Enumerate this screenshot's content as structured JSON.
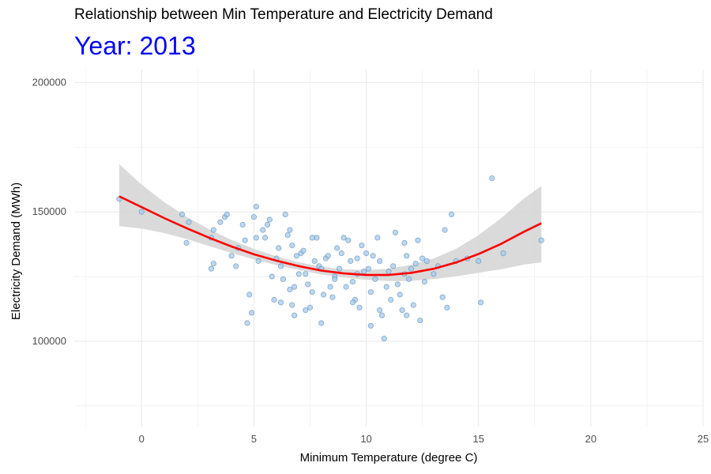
{
  "chart_data": {
    "type": "scatter",
    "title": "Relationship between Min Temperature and Electricity Demand",
    "subtitle": "Year: 2013",
    "xlabel": "Minimum Temperature (degree C)",
    "ylabel": "Electricity Demand (MWh)",
    "xlim": [
      -3,
      25
    ],
    "ylim": [
      67000,
      205000
    ],
    "x_ticks": [
      0,
      5,
      10,
      15,
      20,
      25
    ],
    "y_ticks": [
      100000,
      150000,
      200000
    ],
    "grid": true,
    "legend": "none",
    "points": [
      [
        -1,
        155000
      ],
      [
        0,
        150000
      ],
      [
        1.8,
        149000
      ],
      [
        2,
        138000
      ],
      [
        2.1,
        146000
      ],
      [
        3.1,
        140000
      ],
      [
        3.2,
        143000
      ],
      [
        3.5,
        146000
      ],
      [
        3.7,
        148000
      ],
      [
        3.8,
        149000
      ],
      [
        3.1,
        128000
      ],
      [
        3.2,
        130000
      ],
      [
        4.0,
        133000
      ],
      [
        4.2,
        129000
      ],
      [
        4.3,
        136000
      ],
      [
        4.5,
        145000
      ],
      [
        4.6,
        139000
      ],
      [
        4.7,
        107000
      ],
      [
        4.9,
        111000
      ],
      [
        4.8,
        118000
      ],
      [
        5.0,
        148000
      ],
      [
        5.1,
        152000
      ],
      [
        5.2,
        131000
      ],
      [
        5.4,
        143000
      ],
      [
        5.5,
        140000
      ],
      [
        5.6,
        145000
      ],
      [
        5.7,
        147000
      ],
      [
        5.8,
        125000
      ],
      [
        5.9,
        116000
      ],
      [
        6.0,
        132000
      ],
      [
        6.1,
        136000
      ],
      [
        6.2,
        129000
      ],
      [
        6.3,
        124000
      ],
      [
        6.4,
        149000
      ],
      [
        6.5,
        141000
      ],
      [
        6.6,
        143000
      ],
      [
        6.7,
        137000
      ],
      [
        6.8,
        121000
      ],
      [
        6.9,
        133000
      ],
      [
        6.6,
        120000
      ],
      [
        6.7,
        114000
      ],
      [
        6.8,
        110000
      ],
      [
        7.0,
        126000
      ],
      [
        7.1,
        134000
      ],
      [
        7.2,
        135000
      ],
      [
        7.3,
        126000
      ],
      [
        7.4,
        122000
      ],
      [
        7.5,
        113000
      ],
      [
        7.6,
        119000
      ],
      [
        7.7,
        131000
      ],
      [
        7.8,
        140000
      ],
      [
        7.9,
        129000
      ],
      [
        8.0,
        128000
      ],
      [
        8.1,
        118000
      ],
      [
        8.2,
        132000
      ],
      [
        8.3,
        133000
      ],
      [
        8.4,
        121000
      ],
      [
        8.5,
        117000
      ],
      [
        8.6,
        125000
      ],
      [
        8.7,
        136000
      ],
      [
        8.8,
        128000
      ],
      [
        8.9,
        134000
      ],
      [
        9.0,
        140000
      ],
      [
        9.1,
        121000
      ],
      [
        9.2,
        139000
      ],
      [
        9.3,
        131000
      ],
      [
        9.4,
        123000
      ],
      [
        9.5,
        116000
      ],
      [
        9.6,
        132000
      ],
      [
        9.7,
        113000
      ],
      [
        9.8,
        137000
      ],
      [
        9.9,
        127000
      ],
      [
        10.0,
        134000
      ],
      [
        10.1,
        128000
      ],
      [
        10.2,
        119000
      ],
      [
        10.3,
        133000
      ],
      [
        10.4,
        124000
      ],
      [
        10.5,
        140000
      ],
      [
        10.6,
        131000
      ],
      [
        10.7,
        110000
      ],
      [
        10.8,
        101000
      ],
      [
        10.9,
        121000
      ],
      [
        11.0,
        127000
      ],
      [
        11.1,
        116000
      ],
      [
        11.2,
        129000
      ],
      [
        11.3,
        142000
      ],
      [
        11.4,
        122000
      ],
      [
        11.5,
        118000
      ],
      [
        11.6,
        112000
      ],
      [
        11.7,
        126000
      ],
      [
        11.8,
        133000
      ],
      [
        11.9,
        124000
      ],
      [
        12.0,
        128000
      ],
      [
        12.1,
        114000
      ],
      [
        12.2,
        130000
      ],
      [
        12.3,
        139000
      ],
      [
        12.4,
        108000
      ],
      [
        12.5,
        132000
      ],
      [
        12.6,
        123000
      ],
      [
        12.7,
        131000
      ],
      [
        13.0,
        126000
      ],
      [
        13.2,
        129000
      ],
      [
        13.4,
        117000
      ],
      [
        13.5,
        143000
      ],
      [
        13.6,
        113000
      ],
      [
        13.8,
        149000
      ],
      [
        14.0,
        131000
      ],
      [
        14.5,
        132000
      ],
      [
        15.0,
        131000
      ],
      [
        15.1,
        115000
      ],
      [
        15.6,
        163000
      ],
      [
        16.1,
        134000
      ],
      [
        17.8,
        139000
      ],
      [
        5.1,
        140000
      ],
      [
        7.6,
        140000
      ],
      [
        8.6,
        124000
      ],
      [
        9.4,
        115000
      ],
      [
        10.2,
        106000
      ],
      [
        11.8,
        110000
      ],
      [
        6.2,
        115000
      ],
      [
        7.3,
        112000
      ],
      [
        8.0,
        107000
      ],
      [
        9.6,
        126000
      ],
      [
        10.6,
        112000
      ],
      [
        11.7,
        138000
      ]
    ],
    "trend_line": {
      "x": [
        -1,
        0,
        1,
        2,
        3,
        4,
        5,
        6,
        7,
        8,
        9,
        10,
        11,
        12,
        13,
        14,
        15,
        16,
        17,
        17.8
      ],
      "y": [
        156000,
        151800,
        147600,
        143700,
        140000,
        136600,
        133600,
        131100,
        129000,
        127300,
        126200,
        125600,
        125600,
        126400,
        128000,
        130400,
        133700,
        137600,
        142200,
        145600
      ],
      "ci_lower": [
        144500,
        143500,
        141800,
        139500,
        136800,
        134100,
        131600,
        129400,
        127500,
        125800,
        124600,
        123700,
        123200,
        123300,
        124000,
        125100,
        126400,
        127800,
        129600,
        130500
      ],
      "ci_upper": [
        168500,
        160500,
        153800,
        148100,
        143300,
        139100,
        135700,
        132800,
        130500,
        128800,
        127800,
        127500,
        128000,
        129500,
        132000,
        135700,
        141000,
        147500,
        155000,
        160000
      ]
    },
    "colors": {
      "points_fill": "#a8c8e8",
      "points_stroke": "#4682b4",
      "trend_line": "#ff0000",
      "ci_band": "#d3d3d3",
      "subtitle": "#0000ff",
      "grid": "#ebebeb"
    }
  }
}
